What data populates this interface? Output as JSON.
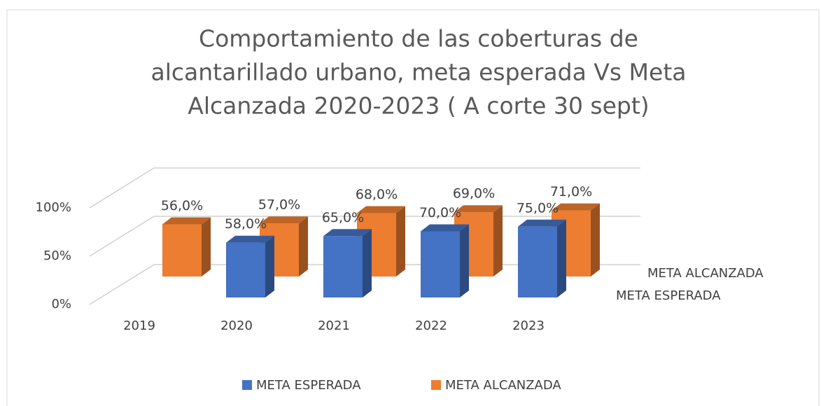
{
  "chart_data": {
    "type": "bar3d",
    "title": [
      "Comportamiento de las coberturas de",
      "alcantarillado urbano, meta esperada Vs Meta",
      "Alcanzada 2020-2023 ( A corte 30 sept)"
    ],
    "categories": [
      "2019",
      "2020",
      "2021",
      "2022",
      "2023"
    ],
    "series": [
      {
        "name": "META ESPERADA",
        "color": "#4472c4",
        "values": [
          null,
          58,
          65,
          70,
          75
        ],
        "value_labels": [
          null,
          "58,0%",
          "65,0%",
          "70,0%",
          "75,0%"
        ]
      },
      {
        "name": "META ALCANZADA",
        "color": "#ed7d31",
        "values": [
          56,
          57,
          68,
          69,
          71
        ],
        "value_labels": [
          "56,0%",
          "57,0%",
          "68,0%",
          "69,0%",
          "71,0%"
        ]
      }
    ],
    "ylim": [
      0,
      100
    ],
    "yticks": [
      {
        "value": 0,
        "label": "0%"
      },
      {
        "value": 50,
        "label": "50%"
      },
      {
        "value": 100,
        "label": "100%"
      }
    ],
    "grid": true,
    "legend": "bottom"
  }
}
